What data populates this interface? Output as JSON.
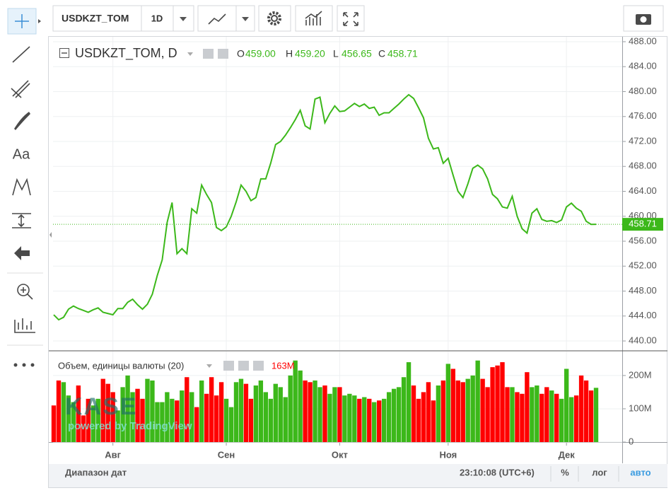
{
  "toolbar": {
    "symbol": "USDKZT_TOM",
    "interval": "1D"
  },
  "left_toolbar": {
    "text_tool": "Aa"
  },
  "watermark": {
    "brand": "KASE",
    "powered": "powered by TradingView"
  },
  "status_bar": {
    "date_range": "Диапазон дат",
    "time": "23:10:08 (UTC+6)",
    "percent": "%",
    "log": "лог",
    "auto": "авто"
  },
  "chart_data": [
    {
      "type": "line",
      "title": "USDKZT_TOM, D",
      "color": "#3cb81a",
      "ohlc": [
        {
          "name": "O",
          "value": "459.00"
        },
        {
          "name": "H",
          "value": "459.20"
        },
        {
          "name": "L",
          "value": "456.65"
        },
        {
          "name": "C",
          "value": "458.71"
        }
      ],
      "categories": [
        null,
        null,
        null,
        null,
        null,
        null,
        null,
        null,
        null,
        null,
        null,
        null,
        "Авг",
        null,
        null,
        null,
        null,
        null,
        null,
        null,
        null,
        null,
        null,
        null,
        null,
        null,
        null,
        null,
        null,
        null,
        null,
        null,
        null,
        null,
        null,
        "Сен",
        null,
        null,
        null,
        null,
        null,
        null,
        null,
        null,
        null,
        null,
        null,
        null,
        null,
        null,
        null,
        null,
        null,
        null,
        null,
        null,
        null,
        null,
        "Окт",
        null,
        null,
        null,
        null,
        null,
        null,
        null,
        null,
        null,
        null,
        null,
        null,
        null,
        null,
        null,
        null,
        null,
        null,
        null,
        null,
        null,
        "Ноя",
        null,
        null,
        null,
        null,
        null,
        null,
        null,
        null,
        null,
        null,
        null,
        null,
        null,
        null,
        null,
        null,
        null,
        null,
        null,
        null,
        null,
        null,
        null,
        "Дек",
        null,
        null,
        null,
        null,
        null,
        null
      ],
      "values": [
        444.2,
        443.4,
        443.8,
        445.1,
        445.6,
        445.2,
        444.9,
        444.6,
        445.0,
        445.3,
        444.6,
        444.4,
        444.2,
        445.2,
        445.2,
        446.2,
        446.7,
        445.8,
        445.1,
        445.9,
        447.5,
        450.5,
        453,
        459,
        462.2,
        454,
        454.8,
        454,
        461.2,
        460.5,
        465,
        463.5,
        462.2,
        458.2,
        457.7,
        458.3,
        460,
        462.3,
        465,
        464,
        462.5,
        463,
        466,
        466,
        468.5,
        471.5,
        472,
        473,
        474.2,
        475.5,
        477,
        474.5,
        474,
        478.8,
        479.1,
        475,
        476.5,
        477.7,
        476.8,
        476.9,
        477.5,
        478.1,
        477.6,
        478,
        477.3,
        477.5,
        476.2,
        476.6,
        476.6,
        477.3,
        478,
        478.8,
        479.5,
        478.9,
        477.4,
        475.8,
        472.5,
        470.8,
        471,
        468.5,
        469.3,
        466.6,
        464,
        463,
        465.2,
        467.7,
        468.2,
        467.6,
        466,
        463.5,
        462.8,
        461.5,
        461.3,
        463.2,
        460,
        458,
        457.3,
        460.5,
        461.2,
        459.5,
        459.2,
        459.3,
        459,
        459.4,
        461.5,
        462.1,
        461.3,
        460.8,
        459.2,
        458.7,
        458.71
      ],
      "ylim": [
        438.53,
        488.79
      ],
      "yticks": [
        {
          "value": 440,
          "label": "440.00"
        },
        {
          "value": 444,
          "label": "444.00"
        },
        {
          "value": 448,
          "label": "448.00"
        },
        {
          "value": 452,
          "label": "452.00"
        },
        {
          "value": 456,
          "label": "456.00"
        },
        {
          "value": 460,
          "label": "460.00"
        },
        {
          "value": 464,
          "label": "464.00"
        },
        {
          "value": 468,
          "label": "468.00"
        },
        {
          "value": 472,
          "label": "472.00"
        },
        {
          "value": 476,
          "label": "476.00"
        },
        {
          "value": 480,
          "label": "480.00"
        },
        {
          "value": 484,
          "label": "484.00"
        },
        {
          "value": 488,
          "label": "488.00"
        }
      ],
      "grid": true,
      "last_value_line": true
    },
    {
      "type": "bar",
      "title": "Объем, единицы валюты (20)",
      "last_label": "163M",
      "up_color": "#3cb81a",
      "down_color": "#ff0000",
      "values": [
        110000000,
        185000000,
        180000000,
        140000000,
        120000000,
        170000000,
        80000000,
        130000000,
        110000000,
        130000000,
        190000000,
        175000000,
        150000000,
        95000000,
        165000000,
        200000000,
        150000000,
        160000000,
        130000000,
        190000000,
        185000000,
        120000000,
        120000000,
        150000000,
        130000000,
        125000000,
        155000000,
        195000000,
        150000000,
        105000000,
        185000000,
        145000000,
        195000000,
        140000000,
        180000000,
        130000000,
        105000000,
        180000000,
        190000000,
        175000000,
        130000000,
        170000000,
        185000000,
        150000000,
        130000000,
        175000000,
        165000000,
        135000000,
        200000000,
        245000000,
        215000000,
        185000000,
        180000000,
        185000000,
        165000000,
        170000000,
        145000000,
        165000000,
        165000000,
        140000000,
        145000000,
        140000000,
        130000000,
        135000000,
        130000000,
        120000000,
        125000000,
        130000000,
        150000000,
        160000000,
        165000000,
        195000000,
        240000000,
        170000000,
        130000000,
        150000000,
        180000000,
        125000000,
        170000000,
        185000000,
        235000000,
        220000000,
        185000000,
        180000000,
        190000000,
        200000000,
        245000000,
        190000000,
        165000000,
        225000000,
        230000000,
        240000000,
        165000000,
        165000000,
        150000000,
        145000000,
        210000000,
        165000000,
        170000000,
        145000000,
        165000000,
        155000000,
        145000000,
        130000000,
        220000000,
        135000000,
        140000000,
        200000000,
        185000000,
        155000000,
        163000000
      ],
      "ylim": [
        0,
        272000000
      ],
      "yticks": [
        0,
        {
          "value": 100000000,
          "label": "100M"
        },
        {
          "value": 200000000,
          "label": "200M"
        }
      ],
      "grid": true
    }
  ]
}
